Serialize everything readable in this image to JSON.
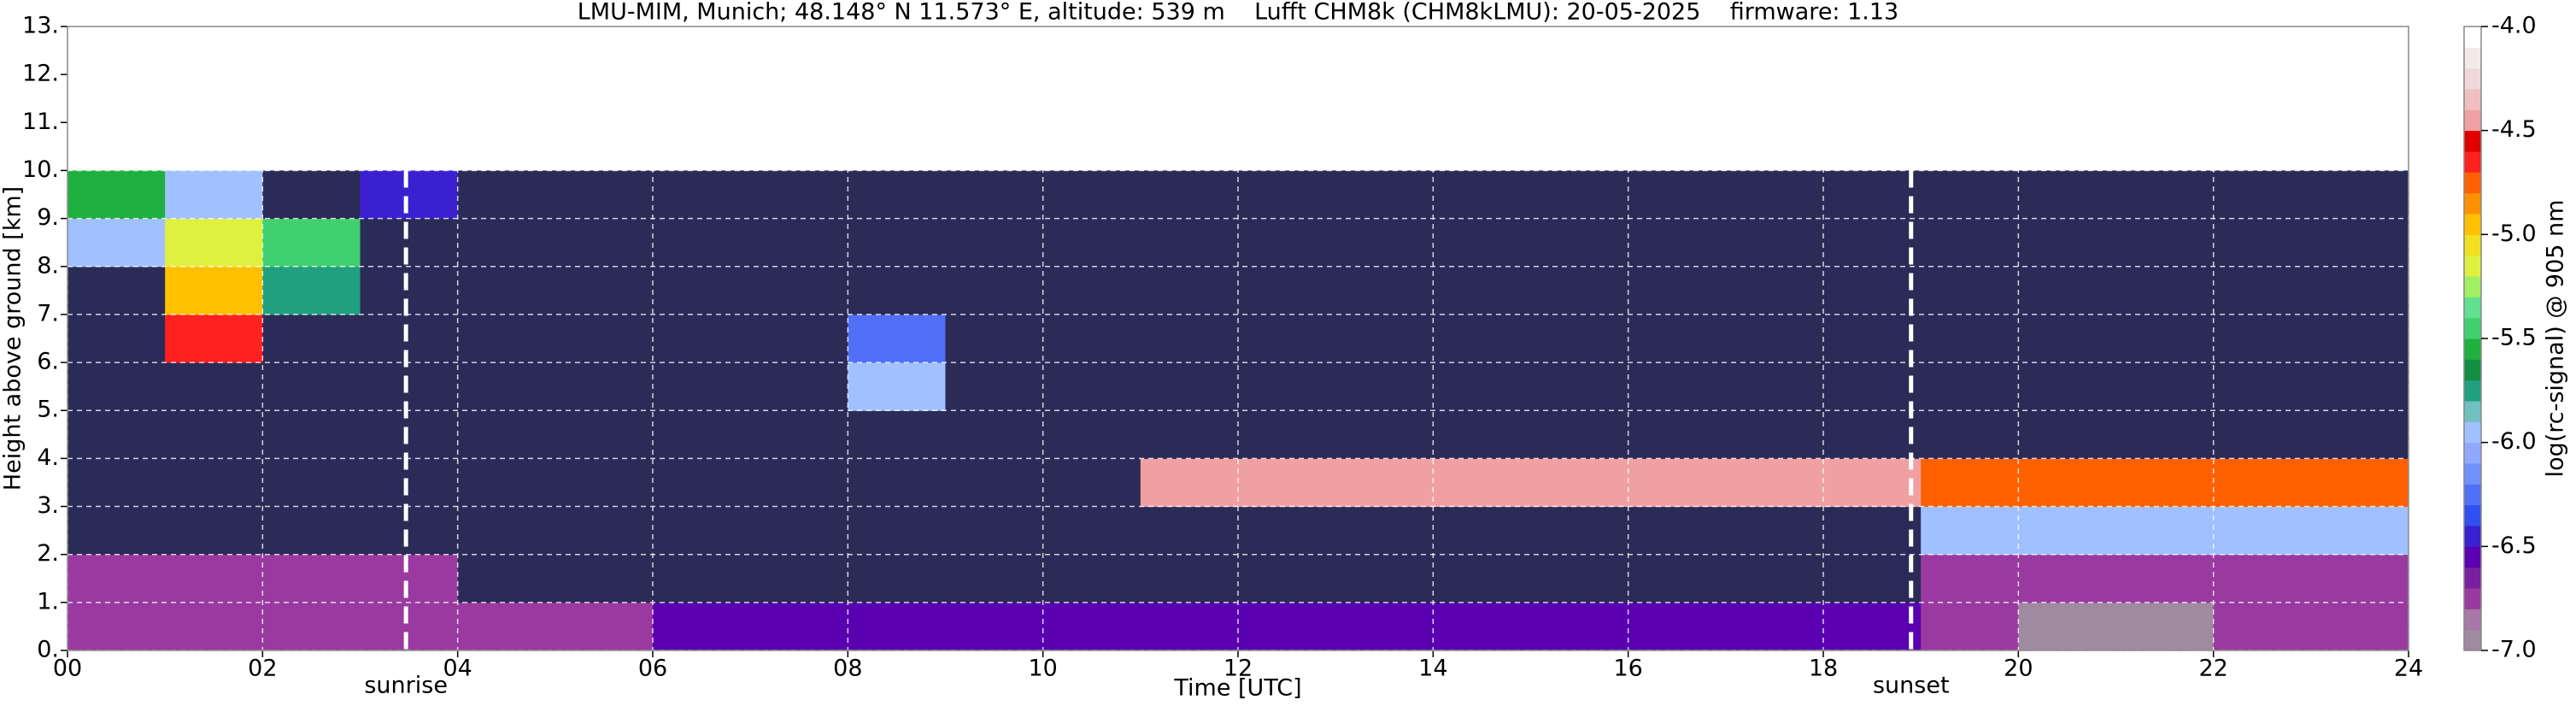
{
  "chart_data": {
    "type": "heatmap",
    "title": "LMU-MIM, Munich; 48.148° N 11.573° E, altitude: 539 m    Lufft CHM8k (CHM8kLMU): 20-05-2025    firmware: 1.13",
    "x_label": "Time [UTC]",
    "y_label": "Height above ground [km]",
    "colorbar_label": "log(rc-signal) @ 905 nm",
    "xlim": [
      0,
      24
    ],
    "xticks": [
      {
        "value": 0,
        "label": "00"
      },
      {
        "value": 2,
        "label": "02"
      },
      {
        "value": 4,
        "label": "04"
      },
      {
        "value": 6,
        "label": "06"
      },
      {
        "value": 8,
        "label": "08"
      },
      {
        "value": 10,
        "label": "10"
      },
      {
        "value": 12,
        "label": "12"
      },
      {
        "value": 14,
        "label": "14"
      },
      {
        "value": 16,
        "label": "16"
      },
      {
        "value": 18,
        "label": "18"
      },
      {
        "value": 20,
        "label": "20"
      },
      {
        "value": 22,
        "label": "22"
      },
      {
        "value": 24,
        "label": "24"
      }
    ],
    "ylim": [
      0,
      13
    ],
    "yticks": [
      {
        "value": 0,
        "label": "0."
      },
      {
        "value": 1,
        "label": "1."
      },
      {
        "value": 2,
        "label": "2."
      },
      {
        "value": 3,
        "label": "3."
      },
      {
        "value": 4,
        "label": "4."
      },
      {
        "value": 5,
        "label": "5."
      },
      {
        "value": 6,
        "label": "6."
      },
      {
        "value": 7,
        "label": "7."
      },
      {
        "value": 8,
        "label": "8."
      },
      {
        "value": 9,
        "label": "9."
      },
      {
        "value": 10,
        "label": "10."
      },
      {
        "value": 11,
        "label": "11."
      },
      {
        "value": 12,
        "label": "12."
      },
      {
        "value": 13,
        "label": "13."
      }
    ],
    "clim": [
      -7,
      -4
    ],
    "cticks": [
      {
        "value": -7,
        "label": "-7.0"
      },
      {
        "value": -6.5,
        "label": "-6.5"
      },
      {
        "value": -6,
        "label": "-6.0"
      },
      {
        "value": -5.5,
        "label": "-5.5"
      },
      {
        "value": -5,
        "label": "-5.0"
      },
      {
        "value": -4.5,
        "label": "-4.5"
      },
      {
        "value": -4,
        "label": "-4.0"
      }
    ],
    "colorscale": [
      "#a08aa0",
      "#a878a8",
      "#9a3aa0",
      "#7a1fa0",
      "#5a00b0",
      "#3a20d0",
      "#3050f0",
      "#5070f8",
      "#7090ff",
      "#90a8ff",
      "#a0c0ff",
      "#70c0c0",
      "#20a080",
      "#109040",
      "#20b040",
      "#40d070",
      "#60e090",
      "#a0f060",
      "#e0f040",
      "#f0e020",
      "#ffc000",
      "#ff9000",
      "#ff6000",
      "#ff2020",
      "#e00000",
      "#f0a0a0",
      "#f0c0c0",
      "#f0d8d8",
      "#f4eaea",
      "#ffffff"
    ],
    "under_color": "#2b2b58",
    "grid": true,
    "grid_color": "#ffffff",
    "annotations": [
      {
        "text": "sunrise",
        "x": 3.47
      },
      {
        "text": "sunset",
        "x": 18.9
      }
    ],
    "xbins": [
      0,
      1,
      2,
      3,
      4,
      5,
      6,
      7,
      8,
      9,
      10,
      11,
      12,
      13,
      14,
      15,
      16,
      17,
      18,
      19,
      20,
      21,
      22,
      23,
      24
    ],
    "ybins": [
      0,
      1,
      2,
      3,
      4,
      5,
      6,
      7,
      8,
      9,
      10
    ],
    "values": [
      [
        -6.8,
        -6.8,
        -6.8,
        -6.8,
        -6.7,
        -6.7,
        -6.6,
        -6.6,
        -6.6,
        -6.6,
        -6.6,
        -6.6,
        -6.6,
        -6.6,
        -6.6,
        -6.6,
        -6.6,
        -6.6,
        -6.6,
        -6.8,
        -6.9,
        -6.9,
        -6.8,
        -6.8
      ],
      [
        -6.7,
        -6.7,
        -6.7,
        -6.8,
        -7.2,
        -7.2,
        -7.2,
        -7.2,
        -7.2,
        -7.2,
        -7.2,
        -7.2,
        -7.2,
        -7.2,
        -7.2,
        -7.2,
        -7.2,
        -7.2,
        -7.2,
        -6.8,
        -6.8,
        -6.8,
        -6.8,
        -6.8
      ],
      [
        -7.1,
        -7.1,
        -7.1,
        -7.1,
        -7.1,
        -7.1,
        -7.1,
        -7.1,
        -7.1,
        -7.1,
        -7.1,
        -7.1,
        -7.1,
        -7.1,
        -7.1,
        -7.1,
        -7.1,
        -7.1,
        -7.1,
        -5.9,
        -5.9,
        -5.9,
        -5.9,
        -6.0
      ],
      [
        -7.1,
        -7.1,
        -7.1,
        -7.1,
        -7.1,
        -7.1,
        -7.1,
        -7.1,
        -7.1,
        -7.1,
        -7.1,
        -4.5,
        -4.5,
        -4.5,
        -4.5,
        -4.5,
        -4.5,
        -4.5,
        -4.5,
        -4.8,
        -4.8,
        -4.8,
        -4.8,
        -4.8
      ],
      [
        -7.1,
        -7.1,
        -7.1,
        -7.1,
        -7.1,
        -7.1,
        -7.1,
        -7.1,
        -7.1,
        -7.1,
        -7.1,
        -7.1,
        -7.1,
        -7.1,
        -7.1,
        -7.1,
        -7.1,
        -7.1,
        -7.1,
        -7.3,
        -7.3,
        -7.3,
        -7.3,
        -7.3
      ],
      [
        -7.1,
        -7.1,
        -7.1,
        -7.1,
        -7.1,
        -7.1,
        -7.1,
        -7.1,
        -6.0,
        -7.1,
        -7.1,
        -7.1,
        -7.1,
        -7.1,
        -7.1,
        -7.1,
        -7.1,
        -7.1,
        -7.1,
        -7.3,
        -7.3,
        -7.3,
        -7.3,
        -7.3
      ],
      [
        -7.1,
        -4.7,
        -7.1,
        -7.1,
        -7.1,
        -7.1,
        -7.1,
        -7.1,
        -6.2,
        -7.1,
        -7.1,
        -7.1,
        -7.1,
        -7.1,
        -7.1,
        -7.1,
        -7.1,
        -7.1,
        -7.1,
        -7.3,
        -7.3,
        -7.3,
        -7.3,
        -7.3
      ],
      [
        -7.1,
        -4.9,
        -5.8,
        -7.1,
        -7.1,
        -7.1,
        -7.1,
        -7.1,
        -7.1,
        -7.1,
        -7.1,
        -7.1,
        -7.1,
        -7.1,
        -7.1,
        -7.1,
        -7.1,
        -7.1,
        -7.1,
        -7.3,
        -7.3,
        -7.3,
        -7.3,
        -7.3
      ],
      [
        -6.0,
        -5.2,
        -5.5,
        -7.1,
        -7.1,
        -7.1,
        -7.1,
        -7.1,
        -7.1,
        -7.1,
        -7.1,
        -7.1,
        -7.1,
        -7.1,
        -7.1,
        -7.1,
        -7.1,
        -7.1,
        -7.1,
        -7.3,
        -7.3,
        -7.3,
        -7.3,
        -7.3
      ],
      [
        -5.6,
        -6.0,
        -7.1,
        -6.4,
        -7.1,
        -7.1,
        -7.1,
        -7.1,
        -7.1,
        -7.1,
        -7.1,
        -7.1,
        -7.1,
        -7.1,
        -7.1,
        -7.1,
        -7.1,
        -7.1,
        -7.1,
        -7.3,
        -7.3,
        -7.3,
        -7.3,
        -7.3
      ]
    ]
  }
}
